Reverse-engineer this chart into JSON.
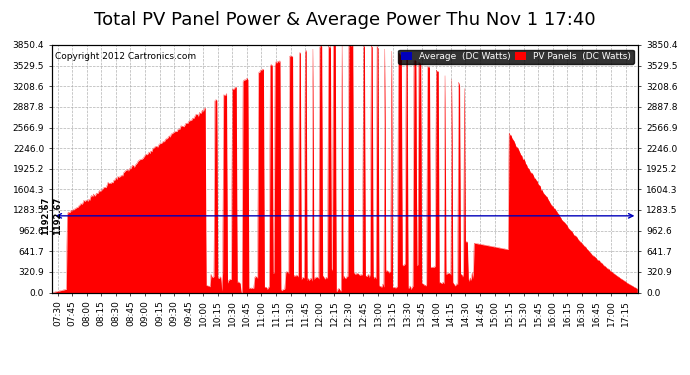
{
  "title": "Total PV Panel Power & Average Power Thu Nov 1 17:40",
  "copyright": "Copyright 2012 Cartronics.com",
  "legend_avg": "Average  (DC Watts)",
  "legend_pv": "PV Panels  (DC Watts)",
  "avg_value": 1192.67,
  "avg_label": "1192.67",
  "ymax": 3850.4,
  "yticks": [
    0.0,
    320.9,
    641.7,
    962.6,
    1283.5,
    1604.3,
    1925.2,
    2246.0,
    2566.9,
    2887.8,
    3208.6,
    3529.5,
    3850.4
  ],
  "bar_color": "#FF0000",
  "avg_line_color": "#0000BB",
  "background_color": "#FFFFFF",
  "grid_color": "#AAAAAA",
  "title_fontsize": 13,
  "copyright_fontsize": 6.5,
  "tick_fontsize": 6.5
}
